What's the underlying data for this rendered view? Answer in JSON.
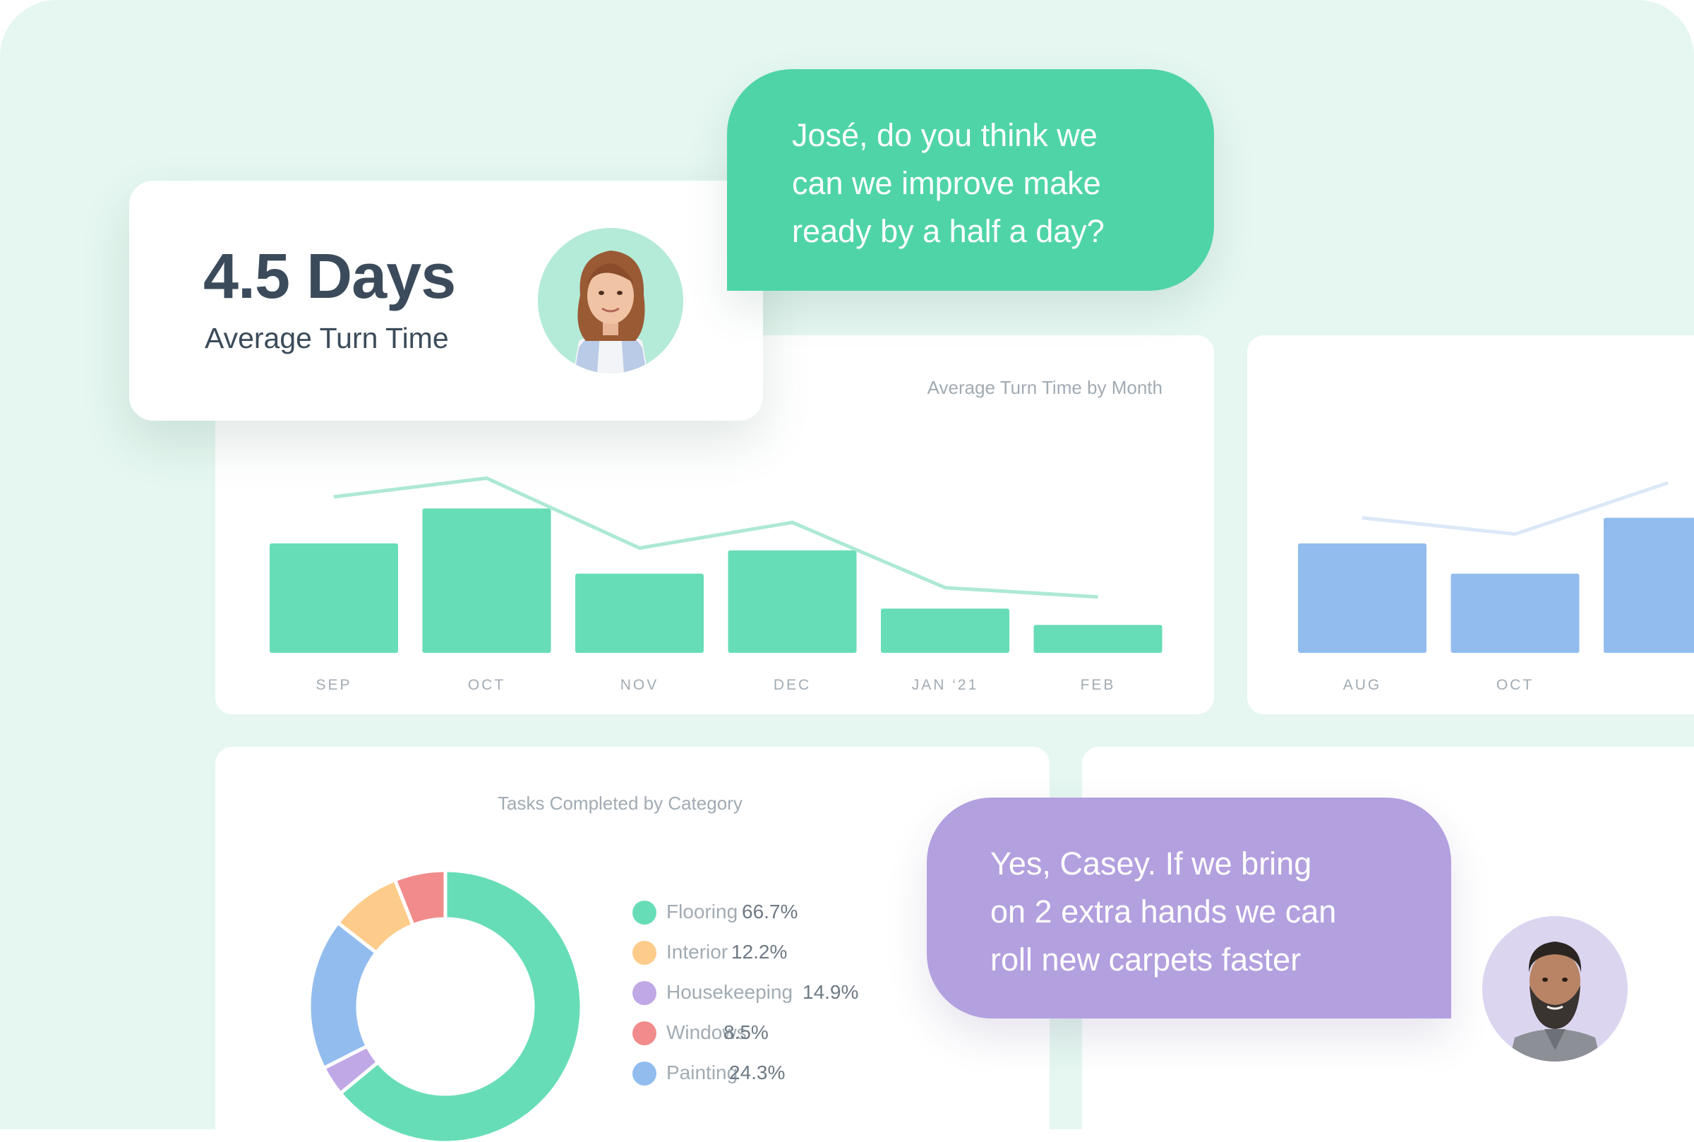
{
  "kpi": {
    "value": "4.5 Days",
    "label": "Average Turn Time"
  },
  "messages": [
    {
      "from": "Casey",
      "avatar": "woman-portrait",
      "lines": [
        "José, do you think we",
        "can we improve make",
        "ready by a half a day?"
      ],
      "color": "#4fd4a8"
    },
    {
      "from": "José",
      "avatar": "man-portrait",
      "lines": [
        "Yes, Casey. If we bring",
        "on 2 extra hands we can",
        "roll new carpets faster"
      ],
      "color": "#b3a0df"
    }
  ],
  "chart_data": [
    {
      "type": "bar",
      "title": "Average Turn Time by Month",
      "categories": [
        "SEP",
        "OCT",
        "NOV",
        "DEC",
        "JAN ‘21",
        "FEB"
      ],
      "series": [
        {
          "kind": "bar",
          "values": [
            4.7,
            6.2,
            3.4,
            4.4,
            1.9,
            1.2
          ]
        },
        {
          "kind": "line",
          "values": [
            6.7,
            7.5,
            4.5,
            5.6,
            2.8,
            2.4
          ]
        }
      ],
      "ylim": [
        0,
        10
      ],
      "colors": {
        "bar": "#67ddb7",
        "line": "#ade9d4"
      }
    },
    {
      "type": "bar",
      "title": "",
      "categories": [
        "AUG",
        "OCT",
        ""
      ],
      "series": [
        {
          "kind": "bar",
          "values": [
            4.7,
            3.4,
            5.8
          ]
        },
        {
          "kind": "line",
          "values": [
            5.8,
            5.1,
            7.3
          ]
        }
      ],
      "ylim": [
        0,
        10
      ],
      "colors": {
        "bar": "#92bcee",
        "line": "#dce8f8"
      }
    },
    {
      "type": "pie",
      "title": "Tasks Completed by Category",
      "labels": [
        "Flooring",
        "Interior",
        "Housekeeping",
        "Windows",
        "Painting"
      ],
      "legend_values": [
        "66.7%",
        "12.2%",
        "14.9%",
        "8.5%",
        "24.3%"
      ],
      "slices": [
        {
          "label": "Flooring",
          "value": 61.5,
          "color": "#67ddb7"
        },
        {
          "label": "Housekeeping",
          "value": 3.4,
          "color": "#c0a8e6"
        },
        {
          "label": "Painting",
          "value": 17.3,
          "color": "#92bcee"
        },
        {
          "label": "Interior",
          "value": 8.1,
          "color": "#fdcc8a"
        },
        {
          "label": "Windows",
          "value": 5.8,
          "color": "#f28c8c"
        }
      ],
      "legend_colors": [
        "#67ddb7",
        "#fdcc8a",
        "#c0a8e6",
        "#f28c8c",
        "#92bcee"
      ]
    }
  ]
}
